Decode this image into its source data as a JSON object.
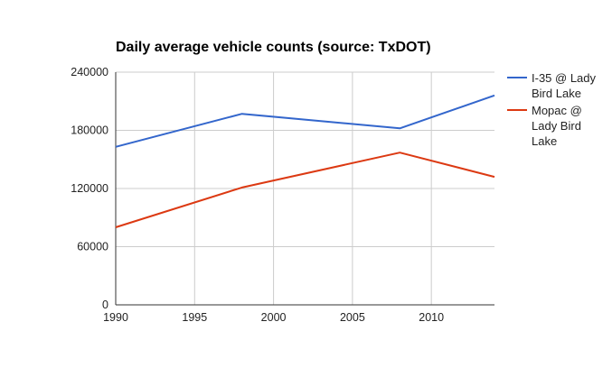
{
  "chart_data": {
    "type": "line",
    "title": "Daily average vehicle counts (source: TxDOT)",
    "xlabel": "",
    "ylabel": "",
    "xlim": [
      1990,
      2014
    ],
    "ylim": [
      0,
      240000
    ],
    "x_ticks": [
      1990,
      1995,
      2000,
      2005,
      2010
    ],
    "x_tick_labels": [
      "1990",
      "1995",
      "2000",
      "2005",
      "2010"
    ],
    "y_ticks": [
      0,
      60000,
      120000,
      180000,
      240000
    ],
    "y_tick_labels": [
      "0",
      "60000",
      "120000",
      "180000",
      "240000"
    ],
    "grid": true,
    "legend_position": "right",
    "series": [
      {
        "name": "I-35 @ Lady Bird Lake",
        "legend_lines": [
          "I-35 @ Lady",
          "Bird Lake"
        ],
        "color": "#3366cc",
        "x": [
          1990,
          1998,
          2008,
          2014
        ],
        "y": [
          163000,
          197000,
          182000,
          216000
        ]
      },
      {
        "name": "Mopac @ Lady Bird Lake",
        "legend_lines": [
          "Mopac @",
          "Lady Bird",
          "Lake"
        ],
        "color": "#dc3912",
        "x": [
          1990,
          1998,
          2008,
          2014
        ],
        "y": [
          80000,
          121000,
          157000,
          132000
        ]
      }
    ]
  }
}
